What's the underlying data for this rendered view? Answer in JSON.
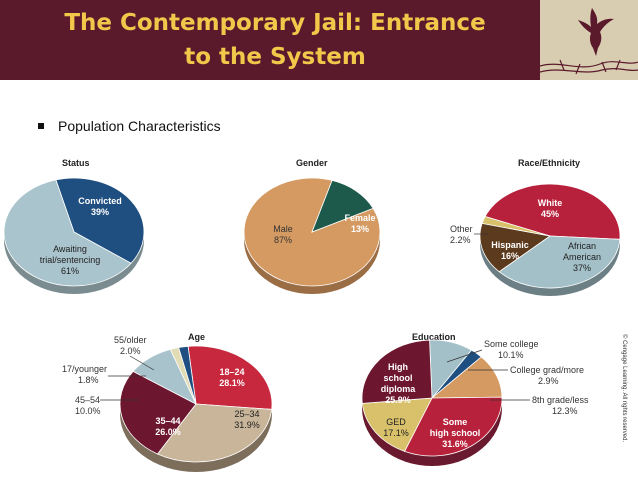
{
  "slide": {
    "title_line1": "The Contemporary Jail: Entrance",
    "title_line2": "to the System",
    "bullet": "Population Characteristics",
    "copyright": "© Cengage Learning. All rights reserved."
  },
  "colors": {
    "header": "#5b1a2c",
    "title": "#f2c84b",
    "logo_bg": "#d8cdb0"
  },
  "icons": [
    "bird-logo-icon",
    "barbed-wire-icon",
    "bullet-square-icon"
  ],
  "chart_data": [
    {
      "type": "pie",
      "title": "Status",
      "slices": [
        {
          "label": "Convicted",
          "pct": "39%",
          "value": 39,
          "color": "#1f4f80"
        },
        {
          "label": "Awaiting trial/sentencing",
          "line1": "Awaiting",
          "line2": "trial/sentencing",
          "pct": "61%",
          "value": 61,
          "color": "#a9c4cc"
        }
      ]
    },
    {
      "type": "pie",
      "title": "Gender",
      "slices": [
        {
          "label": "Male",
          "pct": "87%",
          "value": 87,
          "color": "#d59a62"
        },
        {
          "label": "Female",
          "pct": "13%",
          "value": 13,
          "color": "#1d5a4b"
        }
      ]
    },
    {
      "type": "pie",
      "title": "Race/Ethnicity",
      "slices": [
        {
          "label": "White",
          "pct": "45%",
          "value": 45,
          "color": "#b8213b"
        },
        {
          "label": "African American",
          "line1": "African",
          "line2": "American",
          "pct": "37%",
          "value": 37,
          "color": "#a3c0c8"
        },
        {
          "label": "Hispanic",
          "pct": "16%",
          "value": 16,
          "color": "#5c3a1e"
        },
        {
          "label": "Other",
          "pct": "2.2%",
          "value": 2.2,
          "color": "#d8c16a"
        }
      ]
    },
    {
      "type": "pie",
      "title": "Age",
      "slices": [
        {
          "label": "18–24",
          "pct": "28.1%",
          "value": 28.1,
          "color": "#c7283e"
        },
        {
          "label": "25–34",
          "pct": "31.9%",
          "value": 31.9,
          "color": "#c9b59a"
        },
        {
          "label": "35–44",
          "pct": "26.0%",
          "value": 26.0,
          "color": "#6d1630"
        },
        {
          "label": "45–54",
          "pct": "10.0%",
          "value": 10.0,
          "color": "#a8c3cb"
        },
        {
          "label": "17/younger",
          "pct": "1.8%",
          "value": 1.8,
          "color": "#e1dcb4"
        },
        {
          "label": "55/older",
          "pct": "2.0%",
          "value": 2.0,
          "color": "#1f4f80"
        }
      ]
    },
    {
      "type": "pie",
      "title": "Education",
      "slices": [
        {
          "label": "Some college",
          "pct": "10.1%",
          "value": 10.1,
          "color": "#a3c0c8"
        },
        {
          "label": "College grad/more",
          "pct": "2.9%",
          "value": 2.9,
          "color": "#1f4f80"
        },
        {
          "label": "8th grade/less",
          "pct": "12.3%",
          "value": 12.3,
          "color": "#d59a62"
        },
        {
          "label": "Some high school",
          "line1": "Some",
          "line2": "high school",
          "pct": "31.6%",
          "value": 31.6,
          "color": "#b8213b"
        },
        {
          "label": "GED",
          "pct": "17.1%",
          "value": 17.1,
          "color": "#d8c16a"
        },
        {
          "label": "High school diploma",
          "line1": "High",
          "line2": "school",
          "line3": "diploma",
          "pct": "25.9%",
          "value": 25.9,
          "color": "#6d1630"
        }
      ]
    }
  ]
}
